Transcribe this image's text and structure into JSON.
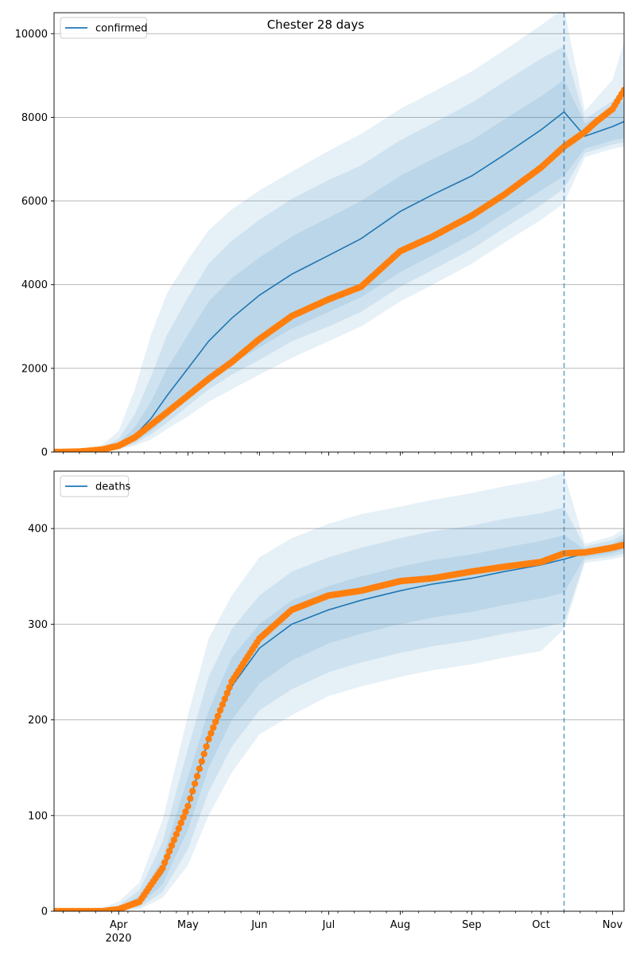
{
  "title": "Chester 28 days",
  "colors": {
    "model_line": "#1f77b4",
    "band": "#1f77b4",
    "observed": "#ff7f0e",
    "grid": "#b0b0b0",
    "forecast_marker": "#1f77b4"
  },
  "x_axis": {
    "month_ticks": [
      {
        "date": "2020-04-01",
        "label": "Apr"
      },
      {
        "date": "2020-05-01",
        "label": "May"
      },
      {
        "date": "2020-06-01",
        "label": "Jun"
      },
      {
        "date": "2020-07-01",
        "label": "Jul"
      },
      {
        "date": "2020-08-01",
        "label": "Aug"
      },
      {
        "date": "2020-09-01",
        "label": "Sep"
      },
      {
        "date": "2020-10-01",
        "label": "Oct"
      },
      {
        "date": "2020-11-01",
        "label": "Nov"
      }
    ],
    "year_label": "2020"
  },
  "chart_data": [
    {
      "type": "line",
      "legend": "confirmed",
      "legend_position": "top-left",
      "grid": "horizontal",
      "xlim": [
        "2020-03-04",
        "2020-11-06"
      ],
      "ylim": [
        0,
        10500
      ],
      "yticks": [
        0,
        2000,
        4000,
        6000,
        8000,
        10000
      ],
      "forecast_start": "2020-10-11",
      "model": {
        "x": [
          "2020-03-04",
          "2020-03-20",
          "2020-03-25",
          "2020-04-01",
          "2020-04-08",
          "2020-04-15",
          "2020-04-22",
          "2020-05-01",
          "2020-05-10",
          "2020-05-20",
          "2020-06-01",
          "2020-06-15",
          "2020-07-01",
          "2020-07-15",
          "2020-08-01",
          "2020-08-15",
          "2020-09-01",
          "2020-09-15",
          "2020-10-01",
          "2020-10-11",
          "2020-10-20",
          "2020-11-01",
          "2020-11-06"
        ],
        "y": [
          0,
          20,
          50,
          150,
          400,
          800,
          1350,
          2000,
          2650,
          3200,
          3750,
          4250,
          4700,
          5100,
          5750,
          6150,
          6600,
          7100,
          7700,
          8130,
          7550,
          7780,
          7900
        ],
        "bands": [
          {
            "lower": [
              0,
              0,
              20,
              100,
              250,
              500,
              850,
              1300,
              1750,
              2100,
              2500,
              2950,
              3350,
              3700,
              4300,
              4700,
              5200,
              5700,
              6250,
              6600,
              7250,
              7450,
              7500
            ],
            "upper": [
              0,
              30,
              80,
              220,
              600,
              1200,
              2000,
              2800,
              3600,
              4150,
              4650,
              5150,
              5600,
              6000,
              6600,
              7000,
              7450,
              7950,
              8500,
              8900,
              7850,
              8200,
              8400
            ]
          },
          {
            "lower": [
              0,
              0,
              15,
              80,
              200,
              420,
              700,
              1100,
              1500,
              1850,
              2200,
              2650,
              3000,
              3350,
              3950,
              4350,
              4850,
              5350,
              5900,
              6300,
              7150,
              7350,
              7400
            ],
            "upper": [
              0,
              40,
              120,
              320,
              900,
              1800,
              2800,
              3700,
              4500,
              5050,
              5550,
              6050,
              6500,
              6850,
              7450,
              7850,
              8350,
              8850,
              9400,
              9700,
              7950,
              8400,
              8700
            ]
          },
          {
            "lower": [
              0,
              0,
              10,
              60,
              150,
              300,
              550,
              850,
              1200,
              1500,
              1850,
              2250,
              2650,
              3000,
              3600,
              4000,
              4500,
              5000,
              5550,
              5950,
              7050,
              7250,
              7300
            ],
            "upper": [
              0,
              50,
              180,
              500,
              1500,
              2800,
              3800,
              4600,
              5300,
              5800,
              6250,
              6700,
              7200,
              7600,
              8200,
              8600,
              9100,
              9600,
              10200,
              10600,
              8150,
              8900,
              9800
            ]
          }
        ]
      },
      "observed": {
        "x": [
          "2020-03-04",
          "2020-03-15",
          "2020-03-25",
          "2020-04-01",
          "2020-04-08",
          "2020-04-15",
          "2020-04-22",
          "2020-05-01",
          "2020-05-10",
          "2020-05-20",
          "2020-06-01",
          "2020-06-15",
          "2020-07-01",
          "2020-07-15",
          "2020-08-01",
          "2020-08-15",
          "2020-09-01",
          "2020-09-15",
          "2020-10-01",
          "2020-10-11",
          "2020-10-20",
          "2020-10-25",
          "2020-11-01",
          "2020-11-06"
        ],
        "y": [
          0,
          10,
          60,
          150,
          350,
          650,
          950,
          1350,
          1750,
          2150,
          2700,
          3250,
          3650,
          3950,
          4800,
          5150,
          5650,
          6150,
          6800,
          7300,
          7650,
          7900,
          8200,
          8650
        ]
      }
    },
    {
      "type": "line",
      "legend": "deaths",
      "legend_position": "top-left",
      "grid": "horizontal",
      "xlim": [
        "2020-03-04",
        "2020-11-06"
      ],
      "ylim": [
        0,
        460
      ],
      "yticks": [
        0,
        100,
        200,
        300,
        400
      ],
      "forecast_start": "2020-10-11",
      "model": {
        "x": [
          "2020-03-04",
          "2020-03-25",
          "2020-04-01",
          "2020-04-10",
          "2020-04-20",
          "2020-05-01",
          "2020-05-10",
          "2020-05-20",
          "2020-06-01",
          "2020-06-15",
          "2020-07-01",
          "2020-07-15",
          "2020-08-01",
          "2020-08-15",
          "2020-09-01",
          "2020-09-15",
          "2020-10-01",
          "2020-10-11",
          "2020-10-20",
          "2020-11-01",
          "2020-11-06"
        ],
        "y": [
          0,
          0,
          2,
          10,
          40,
          110,
          180,
          235,
          275,
          300,
          315,
          325,
          335,
          342,
          348,
          355,
          362,
          368,
          374,
          378,
          383
        ],
        "bands": [
          {
            "lower": [
              0,
              0,
              1,
              6,
              28,
              85,
              150,
              200,
              238,
              262,
              280,
              290,
              300,
              307,
              313,
              320,
              327,
              333,
              370,
              374,
              378
            ],
            "upper": [
              0,
              1,
              4,
              16,
              55,
              140,
              210,
              265,
              300,
              325,
              340,
              350,
              360,
              367,
              373,
              380,
              387,
              393,
              378,
              384,
              390
            ]
          },
          {
            "lower": [
              0,
              0,
              1,
              4,
              20,
              65,
              125,
              172,
              210,
              232,
              250,
              260,
              270,
              277,
              283,
              290,
              296,
              302,
              367,
              371,
              374
            ],
            "upper": [
              0,
              2,
              6,
              22,
              72,
              170,
              245,
              295,
              330,
              355,
              370,
              380,
              390,
              397,
              403,
              410,
              416,
              422,
              381,
              388,
              394
            ]
          },
          {
            "lower": [
              0,
              0,
              0,
              2,
              14,
              48,
              100,
              145,
              185,
              205,
              225,
              235,
              245,
              252,
              258,
              265,
              272,
              295,
              364,
              368,
              371
            ],
            "upper": [
              0,
              4,
              10,
              30,
              95,
              205,
              285,
              330,
              370,
              390,
              405,
              415,
              423,
              430,
              437,
              444,
              451,
              458,
              384,
              392,
              400
            ]
          }
        ]
      },
      "observed": {
        "x": [
          "2020-03-04",
          "2020-03-25",
          "2020-04-01",
          "2020-04-10",
          "2020-04-20",
          "2020-05-01",
          "2020-05-10",
          "2020-05-20",
          "2020-06-01",
          "2020-06-15",
          "2020-07-01",
          "2020-07-15",
          "2020-08-01",
          "2020-08-15",
          "2020-09-01",
          "2020-09-15",
          "2020-10-01",
          "2020-10-11",
          "2020-10-20",
          "2020-11-01",
          "2020-11-06"
        ],
        "y": [
          0,
          0,
          2,
          10,
          45,
          110,
          180,
          240,
          285,
          315,
          330,
          335,
          345,
          348,
          355,
          360,
          365,
          374,
          375,
          380,
          383
        ]
      }
    }
  ]
}
